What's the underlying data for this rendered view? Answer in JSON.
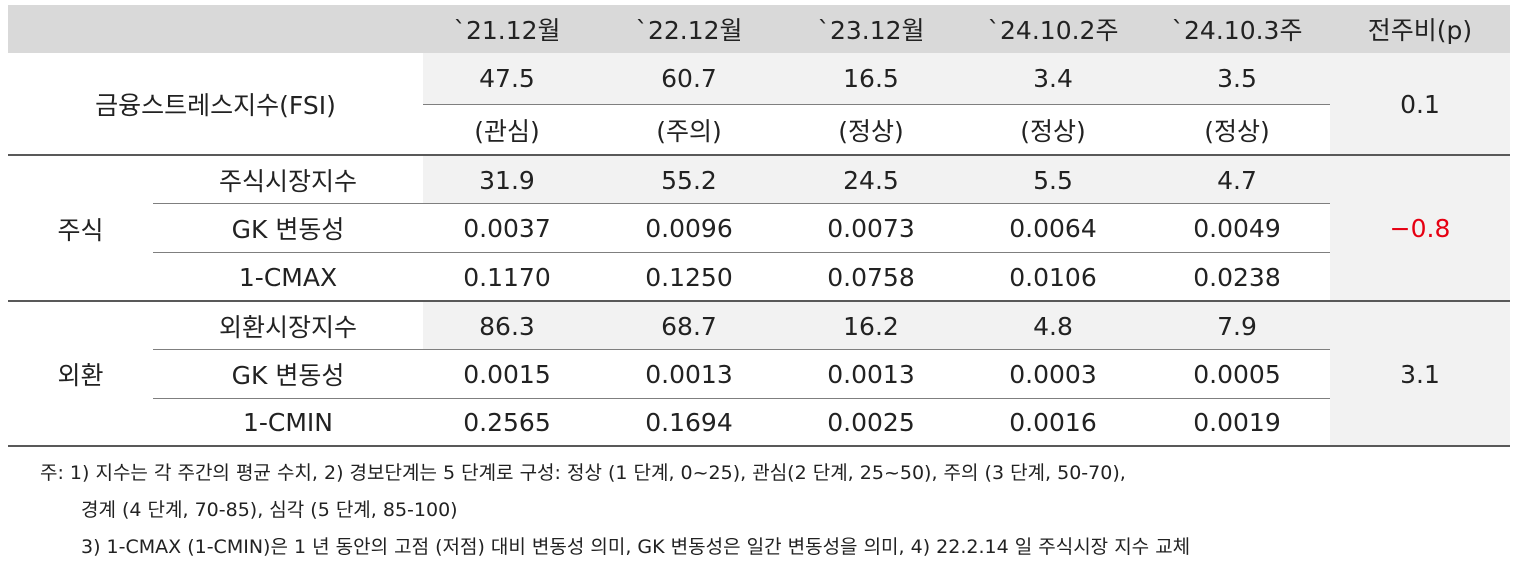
{
  "columns": [
    "`21.12월",
    "`22.12월",
    "`23.12월",
    "`24.10.2주",
    "`24.10.3주",
    "전주비(p)"
  ],
  "fsi": {
    "label": "금융스트레스지수(FSI)",
    "values": [
      "47.5",
      "60.7",
      "16.5",
      "3.4",
      "3.5"
    ],
    "statuses": [
      "(관심)",
      "(주의)",
      "(정상)",
      "(정상)",
      "(정상)"
    ],
    "change": "0.1"
  },
  "groups": [
    {
      "name": "주식",
      "change": "−0.8",
      "change_color": "#e60012",
      "rows": [
        {
          "label": "주식시장지수",
          "values": [
            "31.9",
            "55.2",
            "24.5",
            "5.5",
            "4.7"
          ]
        },
        {
          "label": "GK 변동성",
          "values": [
            "0.0037",
            "0.0096",
            "0.0073",
            "0.0064",
            "0.0049"
          ]
        },
        {
          "label": "1-CMAX",
          "values": [
            "0.1170",
            "0.1250",
            "0.0758",
            "0.0106",
            "0.0238"
          ]
        }
      ]
    },
    {
      "name": "외환",
      "change": "3.1",
      "change_color": "#222222",
      "rows": [
        {
          "label": "외환시장지수",
          "values": [
            "86.3",
            "68.7",
            "16.2",
            "4.8",
            "7.9"
          ]
        },
        {
          "label": "GK 변동성",
          "values": [
            "0.0015",
            "0.0013",
            "0.0013",
            "0.0003",
            "0.0005"
          ]
        },
        {
          "label": "1-CMIN",
          "values": [
            "0.2565",
            "0.1694",
            "0.0025",
            "0.0016",
            "0.0019"
          ]
        }
      ]
    }
  ],
  "notes": [
    "주: 1) 지수는 각 주간의 평균 수치, 2) 경보단계는 5 단계로 구성: 정상 (1 단계, 0~25), 관심(2 단계, 25~50), 주의 (3 단계, 50-70),",
    "경계 (4 단계, 70-85), 심각 (5 단계, 85-100)",
    "3) 1-CMAX (1-CMIN)은 1 년 동안의 고점 (저점) 대비 변동성 의미, GK 변동성은 일간 변동성을 의미, 4) 22.2.14 일 주식시장 지수 교체"
  ]
}
